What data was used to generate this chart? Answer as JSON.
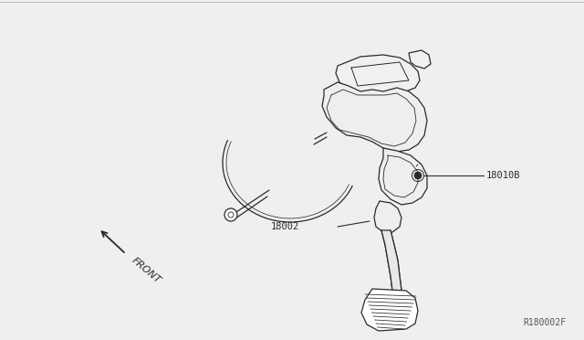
{
  "bg_color": "#efefef",
  "line_color": "#2a2a2a",
  "label_18002": "18002",
  "label_18010B": "18010B",
  "label_front": "FRONT",
  "label_ref": "R180002F",
  "lw": 0.9
}
